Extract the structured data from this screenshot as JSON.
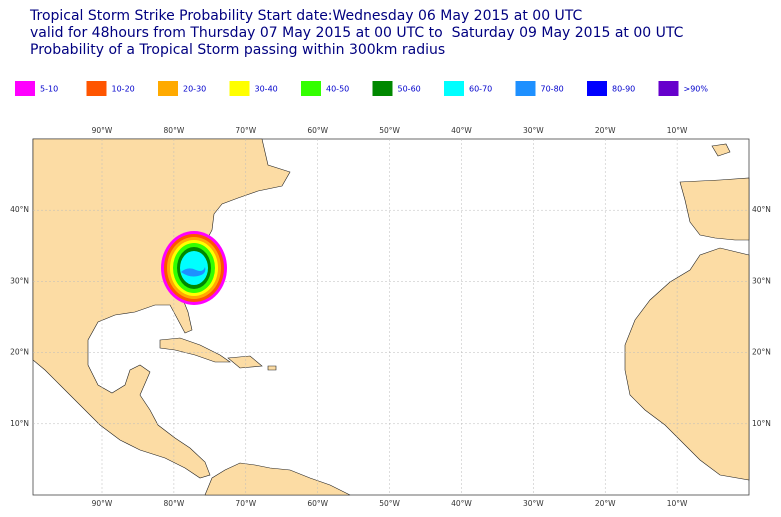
{
  "header": {
    "title_lines": [
      "Tropical Storm Strike Probability Start date:Wednesday 06 May 2015 at 00 UTC",
      "valid for 48hours from Thursday 07 May 2015 at 00 UTC to  Saturday 09 May 2015 at 00 UTC",
      "Probability of a Tropical Storm passing within 300km radius"
    ]
  },
  "legend": [
    {
      "label": "5-10",
      "color": "#ff00ff"
    },
    {
      "label": "10-20",
      "color": "#ff5500"
    },
    {
      "label": "20-30",
      "color": "#ffaa00"
    },
    {
      "label": "30-40",
      "color": "#ffff00"
    },
    {
      "label": "40-50",
      "color": "#33ff00"
    },
    {
      "label": "50-60",
      "color": "#008800"
    },
    {
      "label": "60-70",
      "color": "#00ffff"
    },
    {
      "label": "70-80",
      "color": "#1e90ff"
    },
    {
      "label": "80-90",
      "color": "#0000ff"
    },
    {
      "label": ">90%",
      "color": "#6600cc"
    }
  ],
  "map": {
    "xlim": [
      -99.6,
      0
    ],
    "ylim": [
      0,
      50
    ],
    "xticks": [
      {
        "value": -90,
        "label": "90°W"
      },
      {
        "value": -80,
        "label": "80°W"
      },
      {
        "value": -70,
        "label": "70°W"
      },
      {
        "value": -60,
        "label": "60°W"
      },
      {
        "value": -50,
        "label": "50°W"
      },
      {
        "value": -40,
        "label": "40°W"
      },
      {
        "value": -30,
        "label": "30°W"
      },
      {
        "value": -20,
        "label": "20°W"
      },
      {
        "value": -10,
        "label": "10°W"
      }
    ],
    "yticks": [
      {
        "value": 10,
        "label": "10°N"
      },
      {
        "value": 20,
        "label": "20°N"
      },
      {
        "value": 30,
        "label": "30°N"
      },
      {
        "value": 40,
        "label": "40°N"
      }
    ]
  }
}
